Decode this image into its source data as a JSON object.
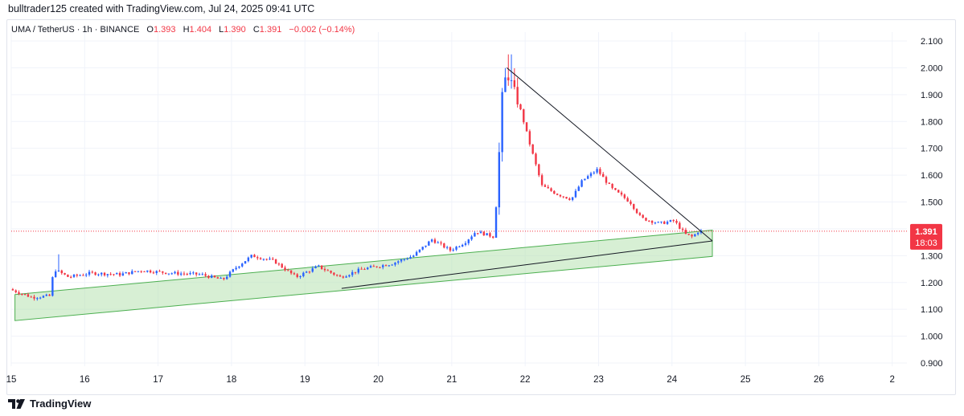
{
  "header": {
    "attribution": "bulltrader125 created with TradingView.com, Jul 24, 2025 09:41 UTC"
  },
  "legend": {
    "symbol": "UMA / TetherUS · 1h · BINANCE",
    "o_label": "O",
    "o_value": "1.393",
    "h_label": "H",
    "h_value": "1.404",
    "l_label": "L",
    "l_value": "1.390",
    "c_label": "C",
    "c_value": "1.391",
    "change": "−0.002 (−0.14%)"
  },
  "price_tag": {
    "price": "1.391",
    "countdown": "18:03"
  },
  "footer": {
    "brand": "TradingView"
  },
  "colors": {
    "up": "#2962ff",
    "down": "#f23645",
    "channel_fill": "#b7e1b0",
    "channel_stroke": "#4caf50",
    "trendline": "#131722",
    "price_line": "#f23645",
    "grid": "#f0f3fa"
  },
  "chart_data": {
    "type": "candlestick",
    "symbol": "UMA / TetherUS",
    "interval": "1h",
    "exchange": "BINANCE",
    "ylim": [
      0.9,
      2.1
    ],
    "y_ticks": [
      "2.100",
      "2.000",
      "1.900",
      "1.800",
      "1.700",
      "1.600",
      "1.500",
      "1.400",
      "1.300",
      "1.200",
      "1.100",
      "1.000",
      "0.900"
    ],
    "x_ticks": [
      "15",
      "16",
      "17",
      "18",
      "19",
      "20",
      "21",
      "22",
      "23",
      "24",
      "25",
      "26",
      "2"
    ],
    "x_range_days": [
      15,
      27.2
    ],
    "last_close": 1.391,
    "price_anchors": [
      {
        "day": 15.0,
        "price": 1.175
      },
      {
        "day": 15.15,
        "price": 1.16
      },
      {
        "day": 15.3,
        "price": 1.145
      },
      {
        "day": 15.55,
        "price": 1.15
      },
      {
        "day": 15.6,
        "price": 1.25
      },
      {
        "day": 15.8,
        "price": 1.22
      },
      {
        "day": 16.1,
        "price": 1.235
      },
      {
        "day": 16.5,
        "price": 1.23
      },
      {
        "day": 16.8,
        "price": 1.245
      },
      {
        "day": 17.2,
        "price": 1.235
      },
      {
        "day": 17.6,
        "price": 1.23
      },
      {
        "day": 17.9,
        "price": 1.21
      },
      {
        "day": 18.1,
        "price": 1.26
      },
      {
        "day": 18.3,
        "price": 1.3
      },
      {
        "day": 18.6,
        "price": 1.28
      },
      {
        "day": 18.9,
        "price": 1.22
      },
      {
        "day": 19.2,
        "price": 1.26
      },
      {
        "day": 19.5,
        "price": 1.22
      },
      {
        "day": 19.8,
        "price": 1.25
      },
      {
        "day": 20.2,
        "price": 1.27
      },
      {
        "day": 20.5,
        "price": 1.3
      },
      {
        "day": 20.75,
        "price": 1.36
      },
      {
        "day": 21.0,
        "price": 1.32
      },
      {
        "day": 21.2,
        "price": 1.35
      },
      {
        "day": 21.35,
        "price": 1.39
      },
      {
        "day": 21.6,
        "price": 1.37
      },
      {
        "day": 21.65,
        "price": 1.6
      },
      {
        "day": 21.72,
        "price": 1.95
      },
      {
        "day": 21.8,
        "price": 1.97
      },
      {
        "day": 21.95,
        "price": 1.85
      },
      {
        "day": 22.1,
        "price": 1.7
      },
      {
        "day": 22.25,
        "price": 1.56
      },
      {
        "day": 22.45,
        "price": 1.53
      },
      {
        "day": 22.65,
        "price": 1.51
      },
      {
        "day": 22.8,
        "price": 1.58
      },
      {
        "day": 23.0,
        "price": 1.62
      },
      {
        "day": 23.2,
        "price": 1.55
      },
      {
        "day": 23.45,
        "price": 1.5
      },
      {
        "day": 23.6,
        "price": 1.44
      },
      {
        "day": 23.85,
        "price": 1.42
      },
      {
        "day": 24.05,
        "price": 1.43
      },
      {
        "day": 24.2,
        "price": 1.38
      },
      {
        "day": 24.3,
        "price": 1.37
      },
      {
        "day": 24.38,
        "price": 1.391
      }
    ],
    "spike_high": 2.05,
    "ascending_channel": {
      "upper": [
        {
          "day": 15.05,
          "price": 1.155
        },
        {
          "day": 24.55,
          "price": 1.395
        }
      ],
      "lower": [
        {
          "day": 15.05,
          "price": 1.058
        },
        {
          "day": 24.55,
          "price": 1.297
        }
      ]
    },
    "trendlines": [
      {
        "from": {
          "day": 21.75,
          "price": 2.0
        },
        "to": {
          "day": 24.55,
          "price": 1.355
        }
      },
      {
        "from": {
          "day": 19.5,
          "price": 1.178
        },
        "to": {
          "day": 24.55,
          "price": 1.355
        }
      }
    ],
    "horizontal_price_line": 1.391
  }
}
